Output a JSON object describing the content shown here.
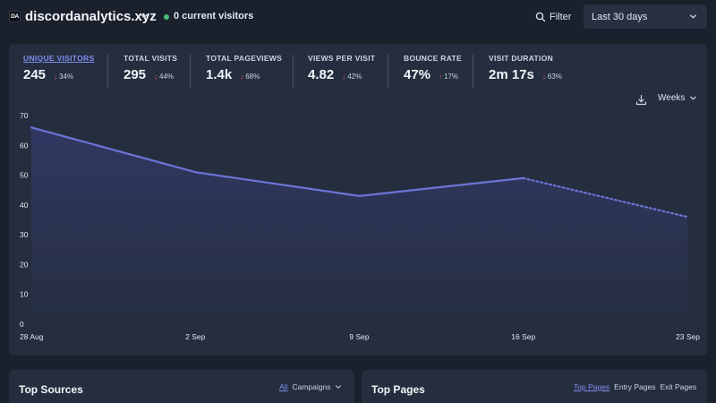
{
  "header": {
    "logo_text": "DA",
    "site_name": "discordanalytics.xyz",
    "current_visitors": "0 current visitors",
    "filter_label": "Filter",
    "period_label": "Last 30 days"
  },
  "stats": [
    {
      "label": "UNIQUE VISITORS",
      "value": "245",
      "change": "34%",
      "direction": "down",
      "active": true
    },
    {
      "label": "TOTAL VISITS",
      "value": "295",
      "change": "44%",
      "direction": "down",
      "active": false
    },
    {
      "label": "TOTAL PAGEVIEWS",
      "value": "1.4k",
      "change": "68%",
      "direction": "down",
      "active": false
    },
    {
      "label": "VIEWS PER VISIT",
      "value": "4.82",
      "change": "42%",
      "direction": "down",
      "active": false
    },
    {
      "label": "BOUNCE RATE",
      "value": "47%",
      "change": "17%",
      "direction": "up",
      "active": false
    },
    {
      "label": "VISIT DURATION",
      "value": "2m 17s",
      "change": "63%",
      "direction": "down",
      "active": false
    }
  ],
  "chart_controls": {
    "interval_label": "Weeks"
  },
  "chart_data": {
    "type": "line",
    "categories": [
      "28 Aug",
      "2 Sep",
      "9 Sep",
      "16 Sep",
      "23 Sep"
    ],
    "values": [
      66,
      51,
      43,
      49,
      36
    ],
    "dashed_from_index": 3,
    "y_ticks": [
      0,
      10,
      20,
      30,
      40,
      50,
      60,
      70
    ],
    "ylim": [
      0,
      70
    ],
    "line_color": "#6c74d8",
    "fill_color": "#4c51bf"
  },
  "top_sources": {
    "title": "Top Sources",
    "tab_all": "All",
    "tab_campaigns": "Campaigns"
  },
  "top_pages": {
    "title": "Top Pages",
    "tabs": [
      "Top Pages",
      "Entry Pages",
      "Exit Pages"
    ]
  }
}
